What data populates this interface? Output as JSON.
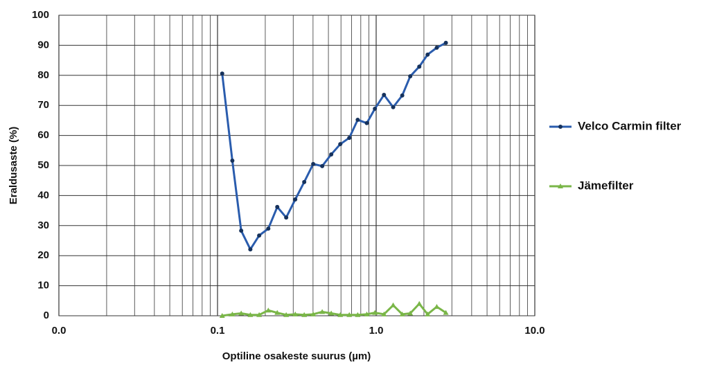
{
  "chart_data": {
    "type": "line",
    "x_label": "Optiline osakeste suurus (µm)",
    "y_label": "Eraldusaste (%)",
    "x_log": true,
    "grid": true,
    "legend_position": "right",
    "xlim": [
      0.01,
      10
    ],
    "ylim": [
      0,
      100
    ],
    "xticks": [
      {
        "value": 0.01,
        "label": "0.0"
      },
      {
        "value": 0.1,
        "label": "0.1"
      },
      {
        "value": 1,
        "label": "1.0"
      },
      {
        "value": 10,
        "label": "10.0"
      }
    ],
    "yticks": [
      0,
      10,
      20,
      30,
      40,
      50,
      60,
      70,
      80,
      90,
      100
    ],
    "x": [
      0.107,
      0.124,
      0.141,
      0.161,
      0.183,
      0.209,
      0.238,
      0.271,
      0.309,
      0.352,
      0.401,
      0.457,
      0.521,
      0.594,
      0.677,
      0.765,
      0.873,
      0.982,
      1.12,
      1.28,
      1.46,
      1.64,
      1.87,
      2.11,
      2.41,
      2.75
    ],
    "series": [
      {
        "name": "Velco Carmin filter",
        "color": "#2a5cad",
        "marker": "circle",
        "values": [
          80.6,
          51.6,
          28.3,
          22.1,
          26.7,
          29,
          36.2,
          32.7,
          38.7,
          44.5,
          50.5,
          49.8,
          53.7,
          57.1,
          59.2,
          65.2,
          64.1,
          68.9,
          73.5,
          69.4,
          73.3,
          79.7,
          82.9,
          86.9,
          89.2,
          90.8
        ]
      },
      {
        "name": "Jämefilter",
        "color": "#7ab648",
        "marker": "triangle",
        "values": [
          0,
          0.5,
          0.8,
          0.3,
          0.3,
          1.8,
          1,
          0.3,
          0.5,
          0.3,
          0.5,
          1.3,
          0.8,
          0.3,
          0.3,
          0.3,
          0.5,
          1,
          0.5,
          3.5,
          0.5,
          0.8,
          4,
          0.5,
          3,
          1
        ]
      }
    ]
  }
}
